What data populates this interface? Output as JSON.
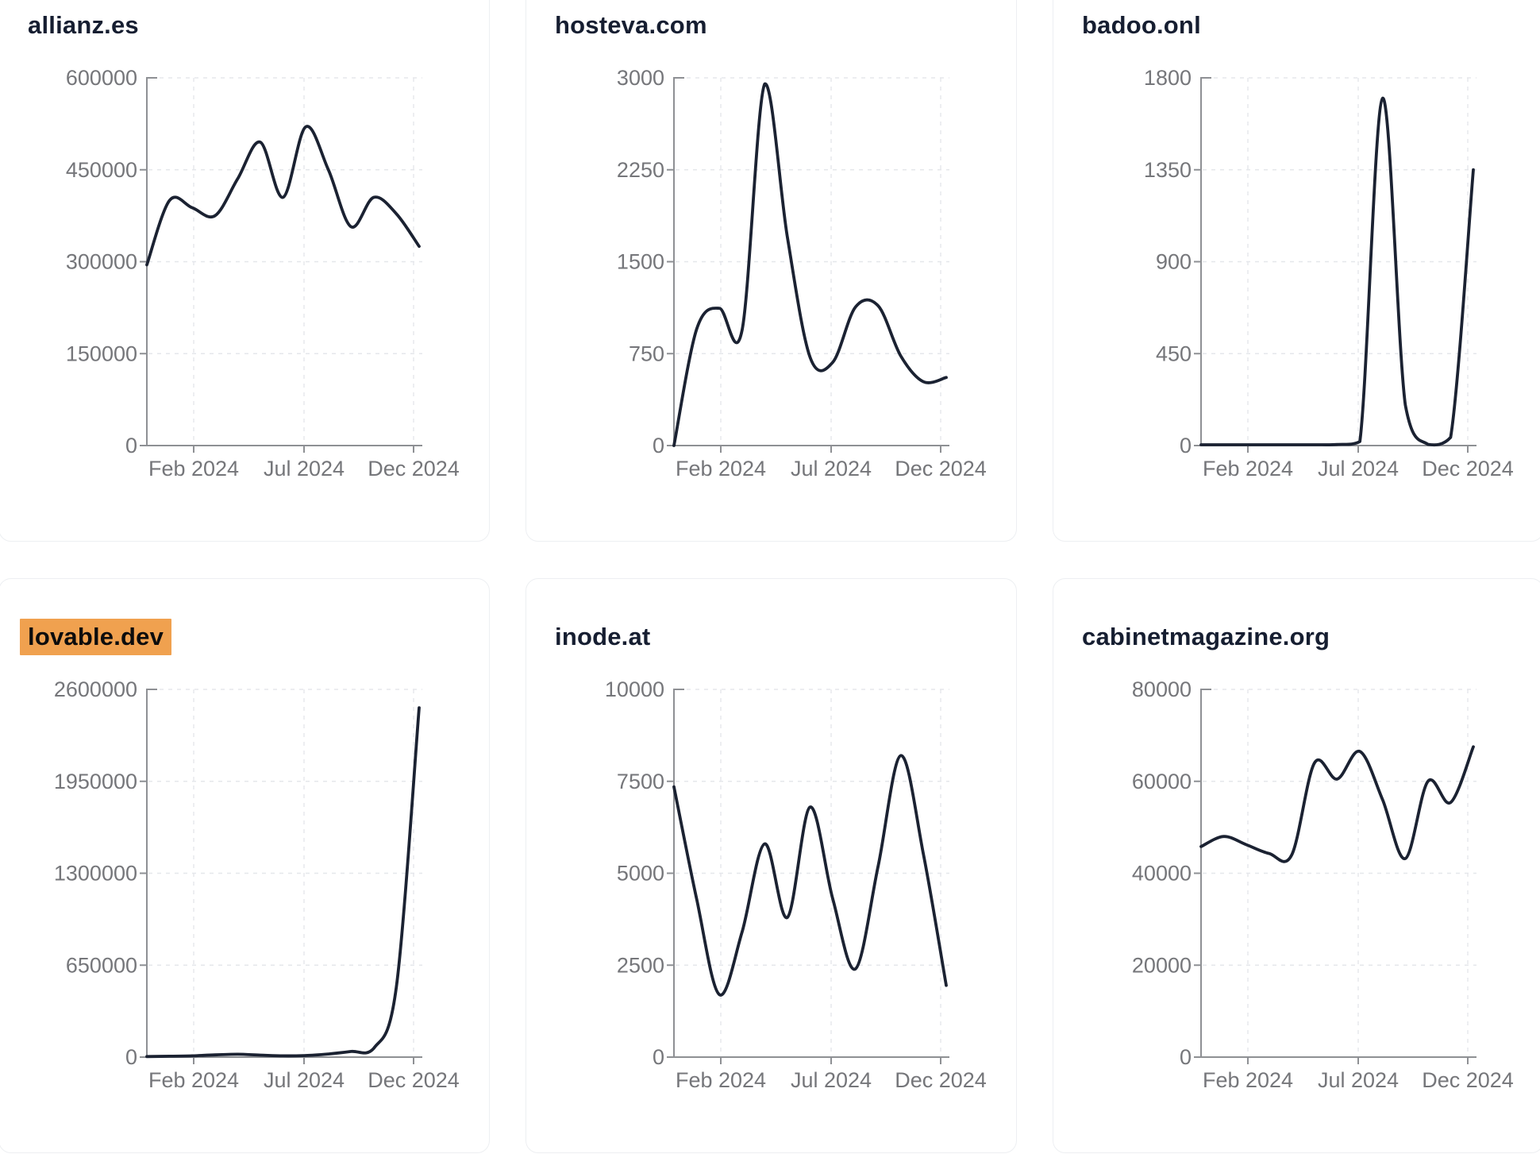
{
  "page": {
    "background": "#ffffff"
  },
  "theme": {
    "line_color": "#1b2232",
    "title_color": "#161e31",
    "highlight_color": "#f0a14f",
    "highlight_text_color": "#0d0d0d",
    "axis_color": "#8e9094",
    "tick_label_color": "#75767a",
    "grid_color": "#e5e7eb",
    "card_border_color": "#edeff2"
  },
  "chart_data": [
    {
      "type": "line",
      "title": "allianz.es",
      "highlighted": false,
      "x_tick_labels": [
        "Feb 2024",
        "Jul 2024",
        "Dec 2024"
      ],
      "y_ticks": [
        600000,
        450000,
        300000,
        150000,
        0
      ],
      "ylim": [
        0,
        600000
      ],
      "grid": true,
      "legend": false,
      "values": [
        295000,
        400000,
        388000,
        375000,
        435000,
        495000,
        405000,
        520000,
        450000,
        357000,
        405000,
        378000,
        325000
      ]
    },
    {
      "type": "line",
      "title": "hosteva.com",
      "highlighted": false,
      "x_tick_labels": [
        "Feb 2024",
        "Jul 2024",
        "Dec 2024"
      ],
      "y_ticks": [
        3000,
        2250,
        1500,
        750,
        0
      ],
      "ylim": [
        0,
        3000
      ],
      "grid": true,
      "legend": false,
      "values": [
        0,
        950,
        1120,
        940,
        2950,
        1700,
        720,
        680,
        1130,
        1140,
        730,
        520,
        555
      ]
    },
    {
      "type": "line",
      "title": "badoo.onl",
      "highlighted": false,
      "x_tick_labels": [
        "Feb 2024",
        "Jul 2024",
        "Dec 2024"
      ],
      "y_ticks": [
        1800,
        1350,
        900,
        450,
        0
      ],
      "ylim": [
        0,
        1800
      ],
      "grid": true,
      "legend": false,
      "values": [
        4,
        4,
        4,
        4,
        4,
        4,
        5,
        20,
        1700,
        200,
        6,
        40,
        1350
      ]
    },
    {
      "type": "line",
      "title": "lovable.dev",
      "highlighted": true,
      "x_tick_labels": [
        "Feb 2024",
        "Jul 2024",
        "Dec 2024"
      ],
      "y_ticks": [
        2600000,
        1950000,
        1300000,
        650000,
        0
      ],
      "ylim": [
        0,
        2600000
      ],
      "grid": true,
      "legend": false,
      "values": [
        4000,
        6000,
        9000,
        16000,
        20000,
        14000,
        9000,
        11000,
        22000,
        40000,
        62000,
        500000,
        2470000
      ]
    },
    {
      "type": "line",
      "title": "inode.at",
      "highlighted": false,
      "x_tick_labels": [
        "Feb 2024",
        "Jul 2024",
        "Dec 2024"
      ],
      "y_ticks": [
        10000,
        7500,
        5000,
        2500,
        0
      ],
      "ylim": [
        0,
        10000
      ],
      "grid": true,
      "legend": false,
      "values": [
        7350,
        4300,
        1700,
        3400,
        5800,
        3800,
        6800,
        4300,
        2400,
        5200,
        8200,
        5500,
        1950
      ]
    },
    {
      "type": "line",
      "title": "cabinetmagazine.org",
      "highlighted": false,
      "x_tick_labels": [
        "Feb 2024",
        "Jul 2024",
        "Dec 2024"
      ],
      "y_ticks": [
        80000,
        60000,
        40000,
        20000,
        0
      ],
      "ylim": [
        0,
        80000
      ],
      "grid": true,
      "legend": false,
      "values": [
        45800,
        48000,
        46200,
        44300,
        44000,
        64000,
        60500,
        66500,
        56000,
        43200,
        60000,
        55400,
        67500
      ]
    }
  ]
}
